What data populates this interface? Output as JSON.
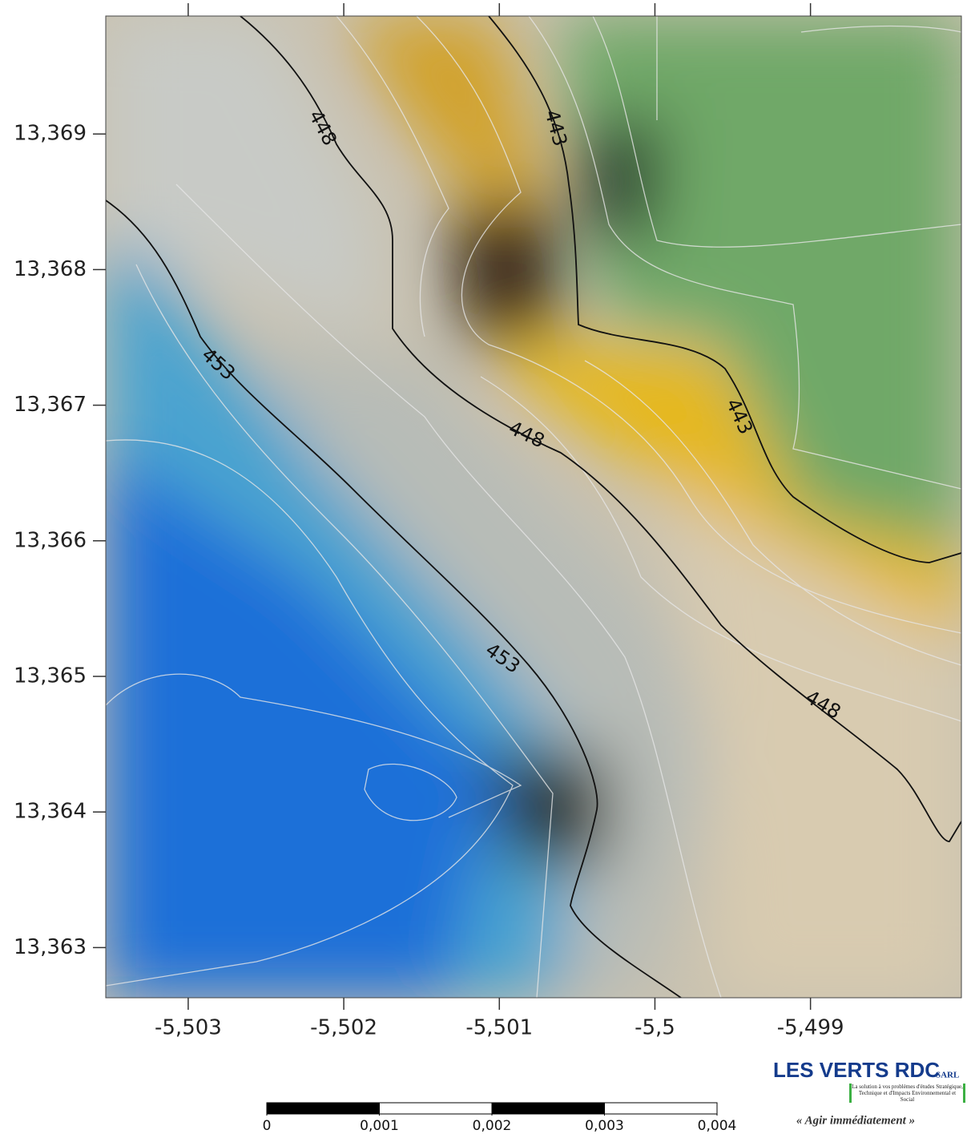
{
  "map": {
    "xlim": [
      -5.50353,
      -5.49803
    ],
    "ylim": [
      13.36263,
      13.36987
    ],
    "xticks": [
      {
        "value": -5.503,
        "label": "-5,503"
      },
      {
        "value": -5.502,
        "label": "-5,502"
      },
      {
        "value": -5.501,
        "label": "-5,501"
      },
      {
        "value": -5.5,
        "label": "-5,5"
      },
      {
        "value": -5.499,
        "label": "-5,499"
      }
    ],
    "yticks": [
      {
        "value": 13.369,
        "label": "13,369"
      },
      {
        "value": 13.368,
        "label": "13,368"
      },
      {
        "value": 13.367,
        "label": "13,367"
      },
      {
        "value": 13.366,
        "label": "13,366"
      },
      {
        "value": 13.365,
        "label": "13,365"
      },
      {
        "value": 13.364,
        "label": "13,364"
      },
      {
        "value": 13.363,
        "label": "13,363"
      }
    ],
    "contour_labels": [
      448,
      443,
      453,
      443,
      448,
      453,
      448
    ],
    "scale_bar": [
      0,
      {
        "value": 0.001,
        "label": "0,001"
      },
      {
        "value": 0.002,
        "label": "0,002"
      },
      {
        "value": 0.003,
        "label": "0,003"
      },
      {
        "value": 0.004,
        "label": "0,004"
      }
    ],
    "logo": {
      "name": "LES VERTS RDC",
      "suffix": "SARL",
      "tagline": "La solution à vos problèmes d'études Stratégique, Technique et d'Impacts Environnemental et Social",
      "motto": "« Agir immédiatement »"
    }
  }
}
